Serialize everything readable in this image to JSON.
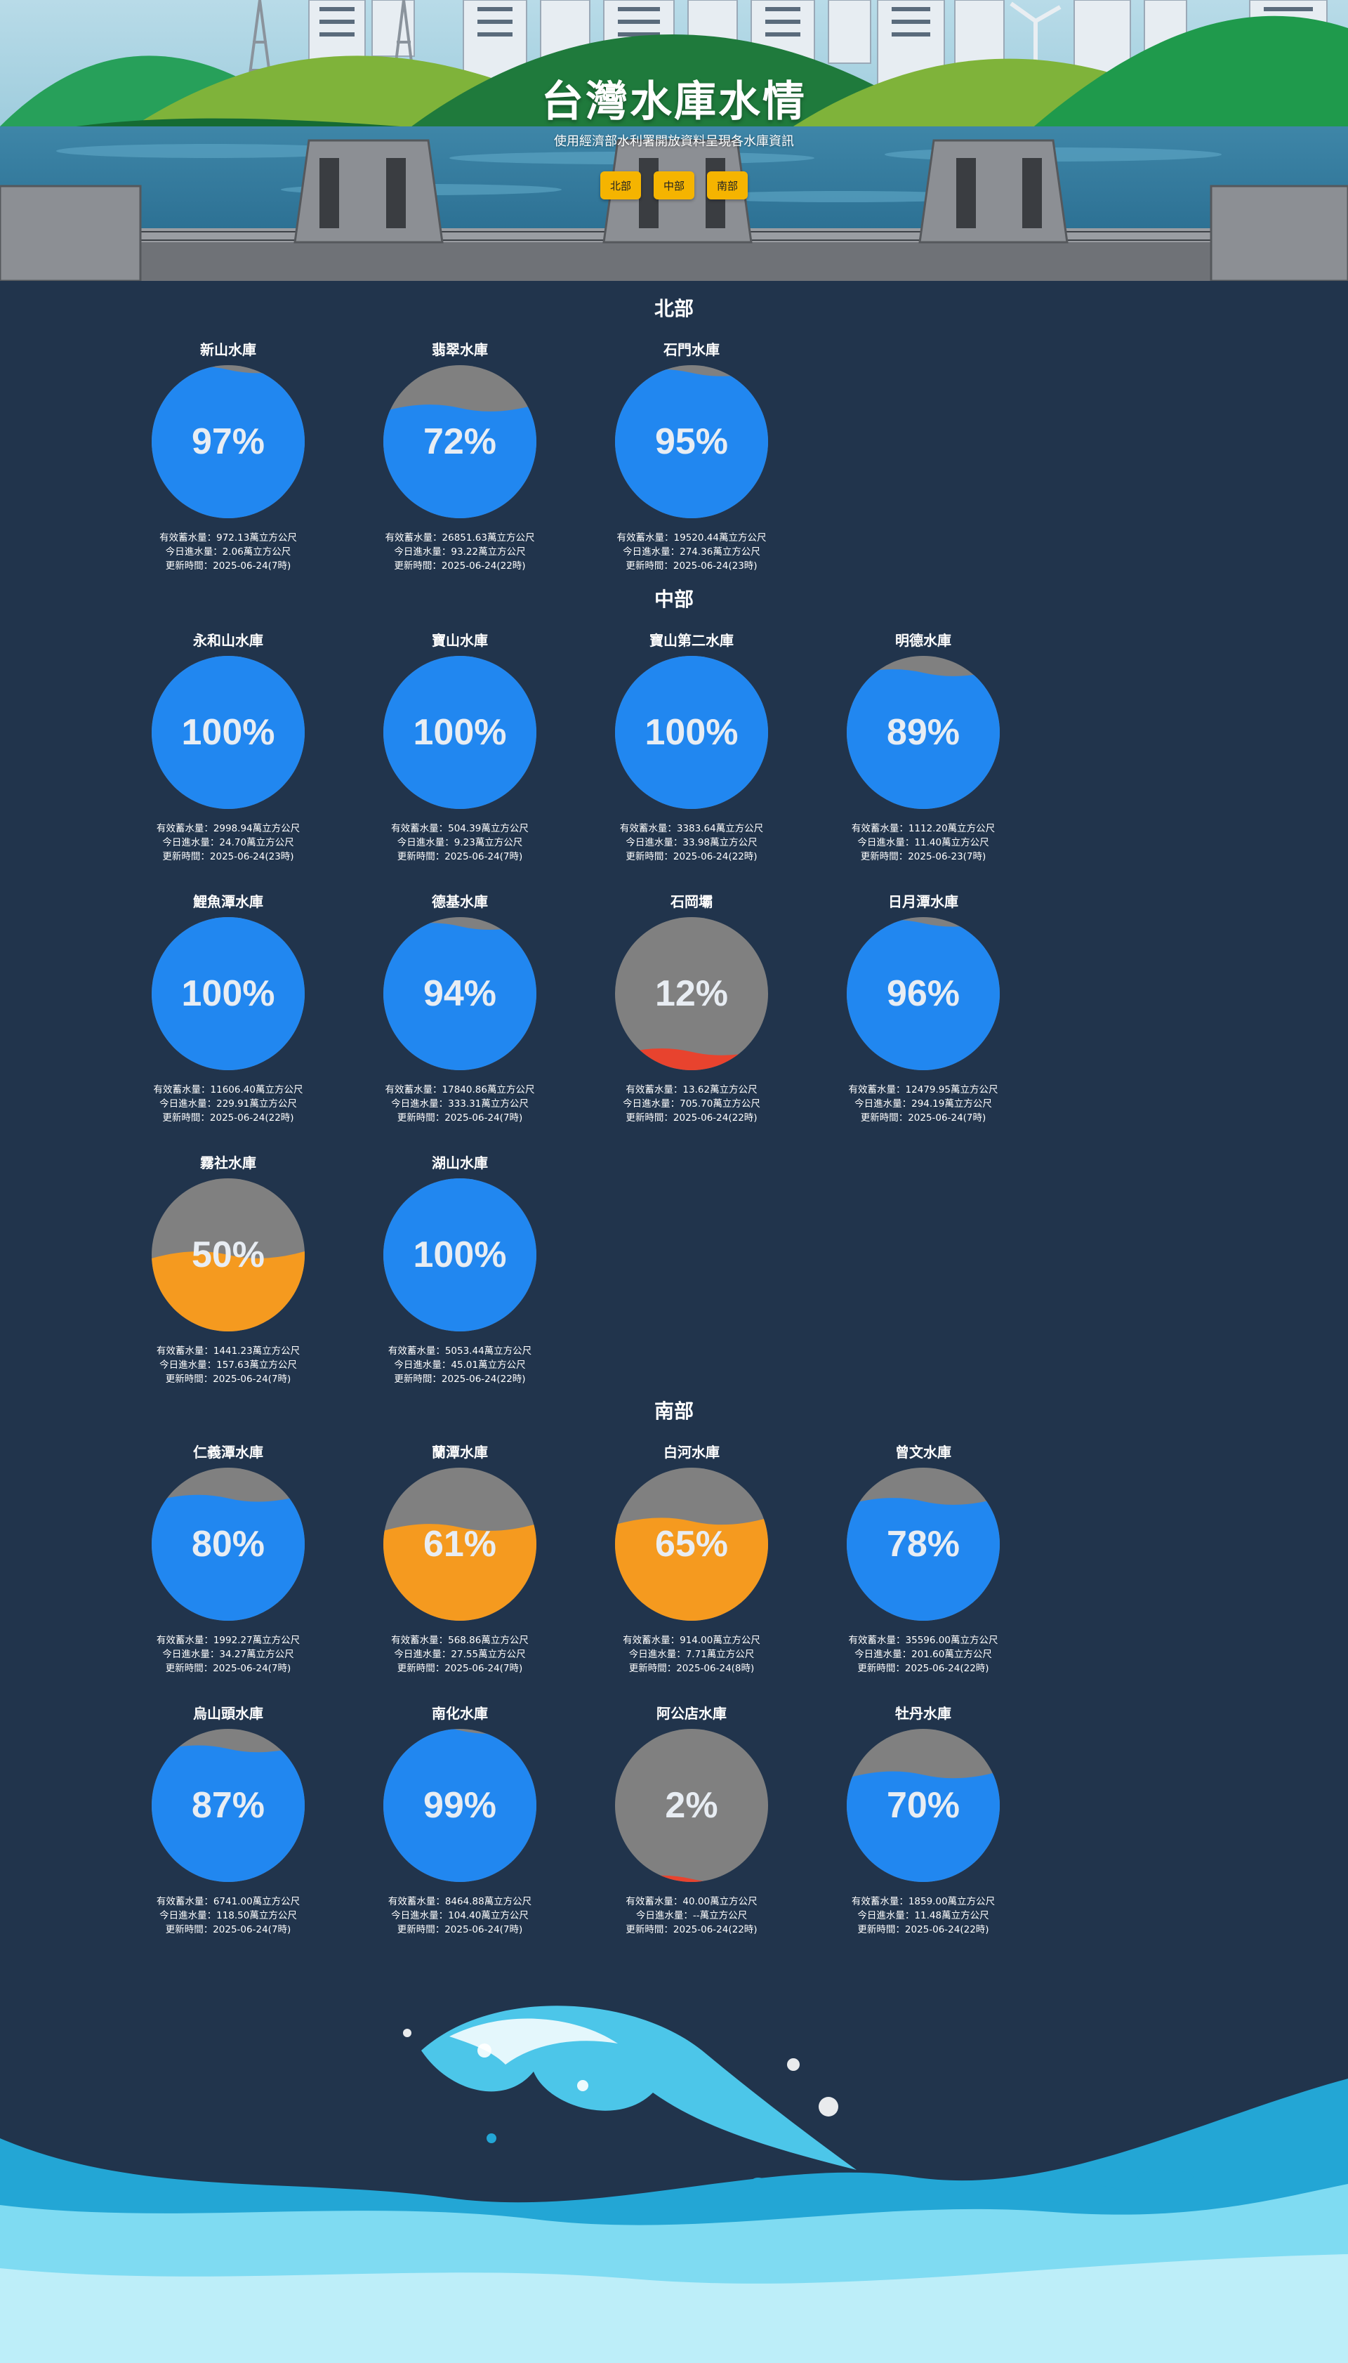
{
  "header": {
    "title": "台灣水庫水情",
    "subtitle": "使用經濟部水利署開放資料呈現各水庫資訊",
    "nav": [
      {
        "label": "北部",
        "target": "north"
      },
      {
        "label": "中部",
        "target": "central"
      },
      {
        "label": "南部",
        "target": "south"
      }
    ]
  },
  "info_labels": {
    "storage": "有效蓄水量：",
    "inflow": "今日進水量：",
    "updated": "更新時間："
  },
  "colors": {
    "background": "#21344c",
    "water_high": "#2187f0",
    "water_mid": "#f59a1f",
    "water_low": "#e8432e",
    "empty": "#808080",
    "nav_button": "#f5b400"
  },
  "regions": [
    {
      "id": "north",
      "name": "北部",
      "reservoirs": [
        {
          "name": "新山水庫",
          "percent": 97,
          "percent_label": "97%",
          "storage": "972.13萬立方公尺",
          "inflow": "2.06萬立方公尺",
          "updated": "2025-06-24(7時)"
        },
        {
          "name": "翡翠水庫",
          "percent": 72,
          "percent_label": "72%",
          "storage": "26851.63萬立方公尺",
          "inflow": "93.22萬立方公尺",
          "updated": "2025-06-24(22時)"
        },
        {
          "name": "石門水庫",
          "percent": 95,
          "percent_label": "95%",
          "storage": "19520.44萬立方公尺",
          "inflow": "274.36萬立方公尺",
          "updated": "2025-06-24(23時)"
        }
      ]
    },
    {
      "id": "central",
      "name": "中部",
      "reservoirs": [
        {
          "name": "永和山水庫",
          "percent": 100,
          "percent_label": "100%",
          "storage": "2998.94萬立方公尺",
          "inflow": "24.70萬立方公尺",
          "updated": "2025-06-24(23時)"
        },
        {
          "name": "寶山水庫",
          "percent": 100,
          "percent_label": "100%",
          "storage": "504.39萬立方公尺",
          "inflow": "9.23萬立方公尺",
          "updated": "2025-06-24(7時)"
        },
        {
          "name": "寶山第二水庫",
          "percent": 100,
          "percent_label": "100%",
          "storage": "3383.64萬立方公尺",
          "inflow": "33.98萬立方公尺",
          "updated": "2025-06-24(22時)"
        },
        {
          "name": "明德水庫",
          "percent": 89,
          "percent_label": "89%",
          "storage": "1112.20萬立方公尺",
          "inflow": "11.40萬立方公尺",
          "updated": "2025-06-23(7時)"
        },
        {
          "name": "鯉魚潭水庫",
          "percent": 100,
          "percent_label": "100%",
          "storage": "11606.40萬立方公尺",
          "inflow": "229.91萬立方公尺",
          "updated": "2025-06-24(22時)"
        },
        {
          "name": "德基水庫",
          "percent": 94,
          "percent_label": "94%",
          "storage": "17840.86萬立方公尺",
          "inflow": "333.31萬立方公尺",
          "updated": "2025-06-24(7時)"
        },
        {
          "name": "石岡壩",
          "percent": 12,
          "percent_label": "12%",
          "storage": "13.62萬立方公尺",
          "inflow": "705.70萬立方公尺",
          "updated": "2025-06-24(22時)"
        },
        {
          "name": "日月潭水庫",
          "percent": 96,
          "percent_label": "96%",
          "storage": "12479.95萬立方公尺",
          "inflow": "294.19萬立方公尺",
          "updated": "2025-06-24(7時)"
        },
        {
          "name": "霧社水庫",
          "percent": 50,
          "percent_label": "50%",
          "storage": "1441.23萬立方公尺",
          "inflow": "157.63萬立方公尺",
          "updated": "2025-06-24(7時)"
        },
        {
          "name": "湖山水庫",
          "percent": 100,
          "percent_label": "100%",
          "storage": "5053.44萬立方公尺",
          "inflow": "45.01萬立方公尺",
          "updated": "2025-06-24(22時)"
        }
      ]
    },
    {
      "id": "south",
      "name": "南部",
      "reservoirs": [
        {
          "name": "仁義潭水庫",
          "percent": 80,
          "percent_label": "80%",
          "storage": "1992.27萬立方公尺",
          "inflow": "34.27萬立方公尺",
          "updated": "2025-06-24(7時)"
        },
        {
          "name": "蘭潭水庫",
          "percent": 61,
          "percent_label": "61%",
          "storage": "568.86萬立方公尺",
          "inflow": "27.55萬立方公尺",
          "updated": "2025-06-24(7時)"
        },
        {
          "name": "白河水庫",
          "percent": 65,
          "percent_label": "65%",
          "storage": "914.00萬立方公尺",
          "inflow": "7.71萬立方公尺",
          "updated": "2025-06-24(8時)"
        },
        {
          "name": "曾文水庫",
          "percent": 78,
          "percent_label": "78%",
          "storage": "35596.00萬立方公尺",
          "inflow": "201.60萬立方公尺",
          "updated": "2025-06-24(22時)"
        },
        {
          "name": "烏山頭水庫",
          "percent": 87,
          "percent_label": "87%",
          "storage": "6741.00萬立方公尺",
          "inflow": "118.50萬立方公尺",
          "updated": "2025-06-24(7時)"
        },
        {
          "name": "南化水庫",
          "percent": 99,
          "percent_label": "99%",
          "storage": "8464.88萬立方公尺",
          "inflow": "104.40萬立方公尺",
          "updated": "2025-06-24(7時)"
        },
        {
          "name": "阿公店水庫",
          "percent": 2,
          "percent_label": "2%",
          "storage": "40.00萬立方公尺",
          "inflow": "--萬立方公尺",
          "updated": "2025-06-24(22時)"
        },
        {
          "name": "牡丹水庫",
          "percent": 70,
          "percent_label": "70%",
          "storage": "1859.00萬立方公尺",
          "inflow": "11.48萬立方公尺",
          "updated": "2025-06-24(22時)"
        }
      ]
    }
  ]
}
